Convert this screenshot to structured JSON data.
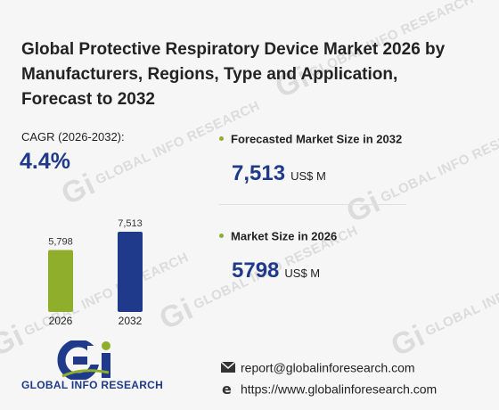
{
  "title": "Global Protective Respiratory Device Market 2026 by Manufacturers, Regions, Type and Application, Forecast to 2032",
  "cagr": {
    "label": "CAGR (2026-2032):",
    "value": "4.4%"
  },
  "stats": [
    {
      "label": "Forecasted Market Size in 2032",
      "value": "7,513",
      "unit": "US$ M"
    },
    {
      "label": "Market Size in 2026",
      "value": "5798",
      "unit": "US$ M"
    }
  ],
  "chart_data": {
    "type": "bar",
    "categories": [
      "2026",
      "2032"
    ],
    "values": [
      5798,
      7513
    ],
    "value_labels": [
      "5,798",
      "7,513"
    ],
    "colors": [
      "#8fae2c",
      "#1f3a8a"
    ],
    "ylim": [
      0,
      7513
    ],
    "grid": false,
    "legend": "none"
  },
  "brand": {
    "logo_text": "GLOBAL INFO RESEARCH",
    "watermark_text": "GLOBAL INFO RESEARCH",
    "primary_color": "#1f3a8a",
    "accent_color": "#8fae2c"
  },
  "contact": {
    "email": "report@globalinforesearch.com",
    "website": "https://www.globalinforesearch.com",
    "email_icon": "envelope-icon",
    "website_icon": "globe-e-icon"
  }
}
